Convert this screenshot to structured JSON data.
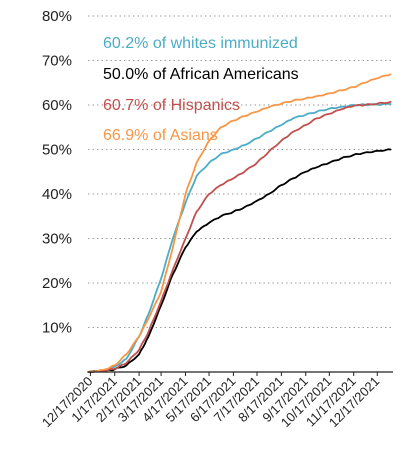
{
  "chart_data": {
    "type": "line",
    "title": "",
    "xlabel": "",
    "ylabel": "",
    "ylim": [
      0,
      80
    ],
    "xlim": [
      "2020-12-14",
      "2022-01-06"
    ],
    "grid": "horizontal-dotted",
    "y_ticks": [
      0,
      10,
      20,
      30,
      40,
      50,
      60,
      70,
      80
    ],
    "y_tick_labels": [
      "",
      "10%",
      "20%",
      "30%",
      "40%",
      "50%",
      "60%",
      "70%",
      "80%"
    ],
    "x_ticks": [
      "2020-12-17",
      "2021-01-17",
      "2021-02-17",
      "2021-03-17",
      "2021-04-17",
      "2021-05-17",
      "2021-06-17",
      "2021-07-17",
      "2021-08-17",
      "2021-09-17",
      "2021-10-17",
      "2021-11-17",
      "2021-12-17"
    ],
    "x_tick_labels": [
      "12/17/2020",
      "1/17/2021",
      "2/17/2021",
      "3/17/2021",
      "4/17/2021",
      "5/17/2021",
      "6/17/2021",
      "7/17/2021",
      "8/17/2021",
      "9/17/2021",
      "10/17/2021",
      "11/17/2021",
      "12/17/2021"
    ],
    "annotations": [
      {
        "text": "60.2% of whites immunized",
        "color": "#4bacc6"
      },
      {
        "text": "50.0% of African Americans",
        "color": "#000000"
      },
      {
        "text": "60.7% of Hispanics",
        "color": "#c0504d"
      },
      {
        "text": "66.9% of Asians",
        "color": "#f79646"
      }
    ],
    "series": [
      {
        "color": "#4bacc6",
        "points": [
          [
            "2020-12-14",
            0
          ],
          [
            "2021-01-03",
            0.3
          ],
          [
            "2021-01-17",
            1.2
          ],
          [
            "2021-02-01",
            3
          ],
          [
            "2021-02-17",
            8
          ],
          [
            "2021-03-01",
            13
          ],
          [
            "2021-03-17",
            21
          ],
          [
            "2021-04-01",
            30
          ],
          [
            "2021-04-17",
            38
          ],
          [
            "2021-05-01",
            44
          ],
          [
            "2021-05-17",
            47
          ],
          [
            "2021-06-01",
            49
          ],
          [
            "2021-06-17",
            50
          ],
          [
            "2021-07-01",
            51
          ],
          [
            "2021-07-17",
            52.5
          ],
          [
            "2021-08-01",
            54
          ],
          [
            "2021-08-17",
            55.5
          ],
          [
            "2021-09-01",
            57
          ],
          [
            "2021-09-17",
            57.8
          ],
          [
            "2021-10-01",
            58.5
          ],
          [
            "2021-10-17",
            59.2
          ],
          [
            "2021-11-01",
            59.6
          ],
          [
            "2021-11-17",
            60
          ],
          [
            "2021-12-01",
            60.1
          ],
          [
            "2021-12-17",
            60.1
          ],
          [
            "2022-01-03",
            60.2
          ]
        ]
      },
      {
        "color": "#000000",
        "points": [
          [
            "2020-12-14",
            0
          ],
          [
            "2021-01-03",
            0.2
          ],
          [
            "2021-01-17",
            0.6
          ],
          [
            "2021-02-01",
            1.5
          ],
          [
            "2021-02-17",
            4
          ],
          [
            "2021-03-01",
            8
          ],
          [
            "2021-03-17",
            15
          ],
          [
            "2021-04-01",
            22
          ],
          [
            "2021-04-17",
            28
          ],
          [
            "2021-05-01",
            31.5
          ],
          [
            "2021-05-17",
            33.5
          ],
          [
            "2021-06-01",
            35
          ],
          [
            "2021-06-17",
            36
          ],
          [
            "2021-07-01",
            37
          ],
          [
            "2021-07-17",
            38.5
          ],
          [
            "2021-08-01",
            40
          ],
          [
            "2021-08-17",
            42
          ],
          [
            "2021-09-01",
            43.5
          ],
          [
            "2021-09-17",
            45
          ],
          [
            "2021-10-01",
            46
          ],
          [
            "2021-10-17",
            47
          ],
          [
            "2021-11-01",
            48
          ],
          [
            "2021-11-17",
            48.8
          ],
          [
            "2021-12-01",
            49.3
          ],
          [
            "2021-12-17",
            49.7
          ],
          [
            "2022-01-03",
            50.0
          ]
        ]
      },
      {
        "color": "#c0504d",
        "points": [
          [
            "2020-12-14",
            0
          ],
          [
            "2021-01-03",
            0.2
          ],
          [
            "2021-01-17",
            0.7
          ],
          [
            "2021-02-01",
            2
          ],
          [
            "2021-02-17",
            5
          ],
          [
            "2021-03-01",
            9
          ],
          [
            "2021-03-17",
            16
          ],
          [
            "2021-04-01",
            23
          ],
          [
            "2021-04-17",
            30
          ],
          [
            "2021-05-01",
            36
          ],
          [
            "2021-05-17",
            40
          ],
          [
            "2021-06-01",
            42
          ],
          [
            "2021-06-17",
            43.5
          ],
          [
            "2021-07-01",
            45
          ],
          [
            "2021-07-17",
            47
          ],
          [
            "2021-08-01",
            49.5
          ],
          [
            "2021-08-17",
            52
          ],
          [
            "2021-09-01",
            54
          ],
          [
            "2021-09-17",
            55.5
          ],
          [
            "2021-10-01",
            57
          ],
          [
            "2021-10-17",
            58
          ],
          [
            "2021-11-01",
            59
          ],
          [
            "2021-11-17",
            59.8
          ],
          [
            "2021-12-01",
            60
          ],
          [
            "2021-12-17",
            60.3
          ],
          [
            "2022-01-03",
            60.7
          ]
        ]
      },
      {
        "color": "#f79646",
        "points": [
          [
            "2020-12-14",
            0
          ],
          [
            "2021-01-03",
            0.5
          ],
          [
            "2021-01-17",
            1.5
          ],
          [
            "2021-02-01",
            4
          ],
          [
            "2021-02-17",
            8
          ],
          [
            "2021-03-01",
            12
          ],
          [
            "2021-03-17",
            18
          ],
          [
            "2021-04-01",
            28
          ],
          [
            "2021-04-17",
            40
          ],
          [
            "2021-05-01",
            47
          ],
          [
            "2021-05-17",
            52
          ],
          [
            "2021-06-01",
            55
          ],
          [
            "2021-06-17",
            56.5
          ],
          [
            "2021-07-01",
            57.5
          ],
          [
            "2021-07-17",
            58.5
          ],
          [
            "2021-08-01",
            59.5
          ],
          [
            "2021-08-17",
            60.3
          ],
          [
            "2021-09-01",
            61
          ],
          [
            "2021-09-17",
            61.5
          ],
          [
            "2021-10-01",
            62
          ],
          [
            "2021-10-17",
            62.6
          ],
          [
            "2021-11-01",
            63.3
          ],
          [
            "2021-11-17",
            64
          ],
          [
            "2021-12-01",
            65
          ],
          [
            "2021-12-17",
            66
          ],
          [
            "2022-01-03",
            66.9
          ]
        ]
      }
    ]
  }
}
